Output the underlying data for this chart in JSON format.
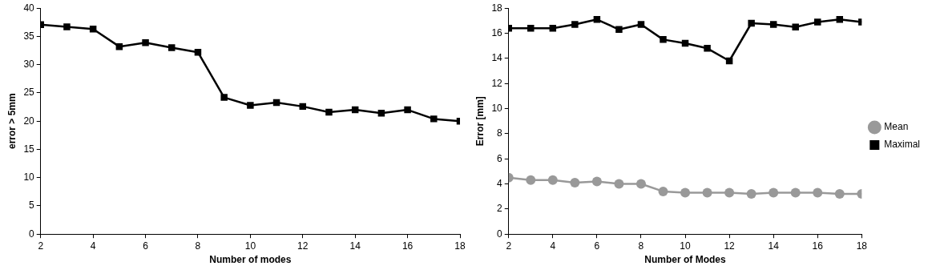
{
  "chart_data": [
    {
      "type": "line",
      "xlabel": "Number of modes",
      "ylabel": "error > 5mm",
      "xlim": [
        2,
        18
      ],
      "xticks": [
        2,
        4,
        6,
        8,
        10,
        12,
        14,
        16,
        18
      ],
      "ylim": [
        0,
        40
      ],
      "yticks": [
        0,
        5,
        10,
        15,
        20,
        25,
        30,
        35,
        40
      ],
      "grid": false,
      "legend": false,
      "marker": "square",
      "line_style": "solid",
      "x": [
        2,
        3,
        4,
        5,
        6,
        7,
        8,
        9,
        10,
        11,
        12,
        13,
        14,
        15,
        16,
        17,
        18
      ],
      "series": [
        {
          "color": "#000000",
          "values": [
            37.1,
            36.7,
            36.3,
            33.2,
            33.9,
            33.0,
            32.2,
            24.2,
            22.8,
            23.3,
            22.6,
            21.6,
            22.0,
            21.4,
            22.0,
            20.4,
            20.0
          ]
        }
      ]
    },
    {
      "type": "line",
      "xlabel": "Number of Modes",
      "ylabel": "Error [mm]",
      "xlim": [
        2,
        18
      ],
      "xticks": [
        2,
        4,
        6,
        8,
        10,
        12,
        14,
        16,
        18
      ],
      "ylim": [
        0,
        18
      ],
      "yticks": [
        0,
        2,
        4,
        6,
        8,
        10,
        12,
        14,
        16,
        18
      ],
      "grid": false,
      "legend": "right",
      "line_style": "solid",
      "x": [
        2,
        3,
        4,
        5,
        6,
        7,
        8,
        9,
        10,
        11,
        12,
        13,
        14,
        15,
        16,
        17,
        18
      ],
      "series": [
        {
          "name": "Mean",
          "color": "#999999",
          "marker": "circle",
          "values": [
            4.5,
            4.3,
            4.3,
            4.1,
            4.2,
            4.0,
            4.0,
            3.4,
            3.3,
            3.3,
            3.3,
            3.2,
            3.3,
            3.3,
            3.3,
            3.2,
            3.2
          ]
        },
        {
          "name": "Maximal",
          "color": "#000000",
          "marker": "square",
          "values": [
            16.4,
            16.4,
            16.4,
            16.7,
            17.1,
            16.3,
            16.7,
            15.5,
            15.2,
            14.8,
            13.8,
            16.8,
            16.7,
            16.5,
            16.9,
            17.1,
            16.9
          ]
        }
      ]
    }
  ]
}
